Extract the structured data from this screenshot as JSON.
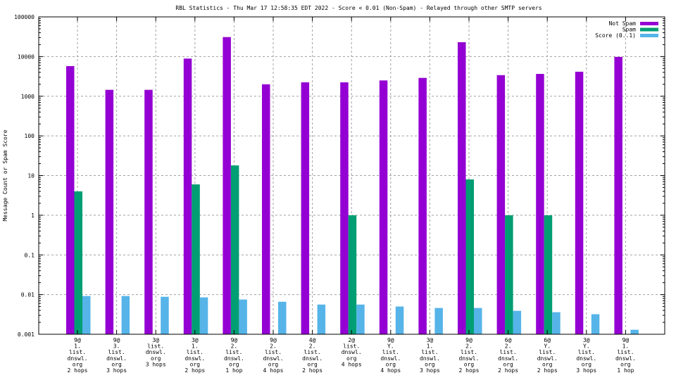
{
  "chart_data": {
    "type": "bar",
    "title": "RBL Statistics - Thu Mar 17 12:58:35 EDT 2022 - Score < 0.01 (Non-Spam) - Relayed through other SMTP servers",
    "xlabel": "",
    "ylabel": "Message Count or Spam Score",
    "yscale": "log",
    "ylim": [
      0.001,
      100000
    ],
    "yticks": [
      "0.001",
      "0.01",
      "0.1",
      "1",
      "10",
      "100",
      "1000",
      "10000",
      "100000"
    ],
    "grid": true,
    "legend_position": "top-right",
    "categories": [
      [
        "9@",
        "1.",
        "list.",
        "dnswl.",
        "org",
        "2 hops"
      ],
      [
        "9@",
        "3.",
        "list.",
        "dnswl.",
        "org",
        "3 hops"
      ],
      [
        "3@",
        "list.",
        "dnswl.",
        "org",
        "3 hops"
      ],
      [
        "3@",
        "1.",
        "list.",
        "dnswl.",
        "org",
        "2 hops"
      ],
      [
        "9@",
        "2.",
        "list.",
        "dnswl.",
        "org",
        "1 hop"
      ],
      [
        "9@",
        "2.",
        "list.",
        "dnswl.",
        "org",
        "4 hops"
      ],
      [
        "4@",
        "2.",
        "list.",
        "dnswl.",
        "org",
        "2 hops"
      ],
      [
        "2@",
        "list.",
        "dnswl.",
        "org",
        "4 hops"
      ],
      [
        "9@",
        "Y.",
        "list.",
        "dnswl.",
        "org",
        "4 hops"
      ],
      [
        "3@",
        "1.",
        "list.",
        "dnswl.",
        "org",
        "3 hops"
      ],
      [
        "9@",
        "2.",
        "list.",
        "dnswl.",
        "org",
        "2 hops"
      ],
      [
        "6@",
        "2.",
        "list.",
        "dnswl.",
        "org",
        "2 hops"
      ],
      [
        "6@",
        "Y.",
        "list.",
        "dnswl.",
        "org",
        "2 hops"
      ],
      [
        "3@",
        "Y.",
        "list.",
        "dnswl.",
        "org",
        "3 hops"
      ],
      [
        "9@",
        "1.",
        "list.",
        "dnswl.",
        "org",
        "1 hop"
      ]
    ],
    "series": [
      {
        "name": "Not Spam",
        "color": "#9400d3",
        "values": [
          5750,
          1450,
          1450,
          8900,
          31000,
          2000,
          2240,
          2240,
          2500,
          2900,
          23000,
          3400,
          3650,
          4150,
          9800
        ]
      },
      {
        "name": "Spam",
        "color": "#009e73",
        "values": [
          4,
          0,
          0,
          6,
          18,
          0,
          0,
          1,
          0,
          0,
          8,
          1,
          1,
          0,
          0
        ]
      },
      {
        "name": "Score (0..1)",
        "color": "#56b4e9",
        "values": [
          0.0092,
          0.0092,
          0.0088,
          0.0085,
          0.0075,
          0.0066,
          0.0056,
          0.0056,
          0.005,
          0.0046,
          0.0046,
          0.0039,
          0.0036,
          0.0032,
          0.0013
        ]
      }
    ]
  }
}
